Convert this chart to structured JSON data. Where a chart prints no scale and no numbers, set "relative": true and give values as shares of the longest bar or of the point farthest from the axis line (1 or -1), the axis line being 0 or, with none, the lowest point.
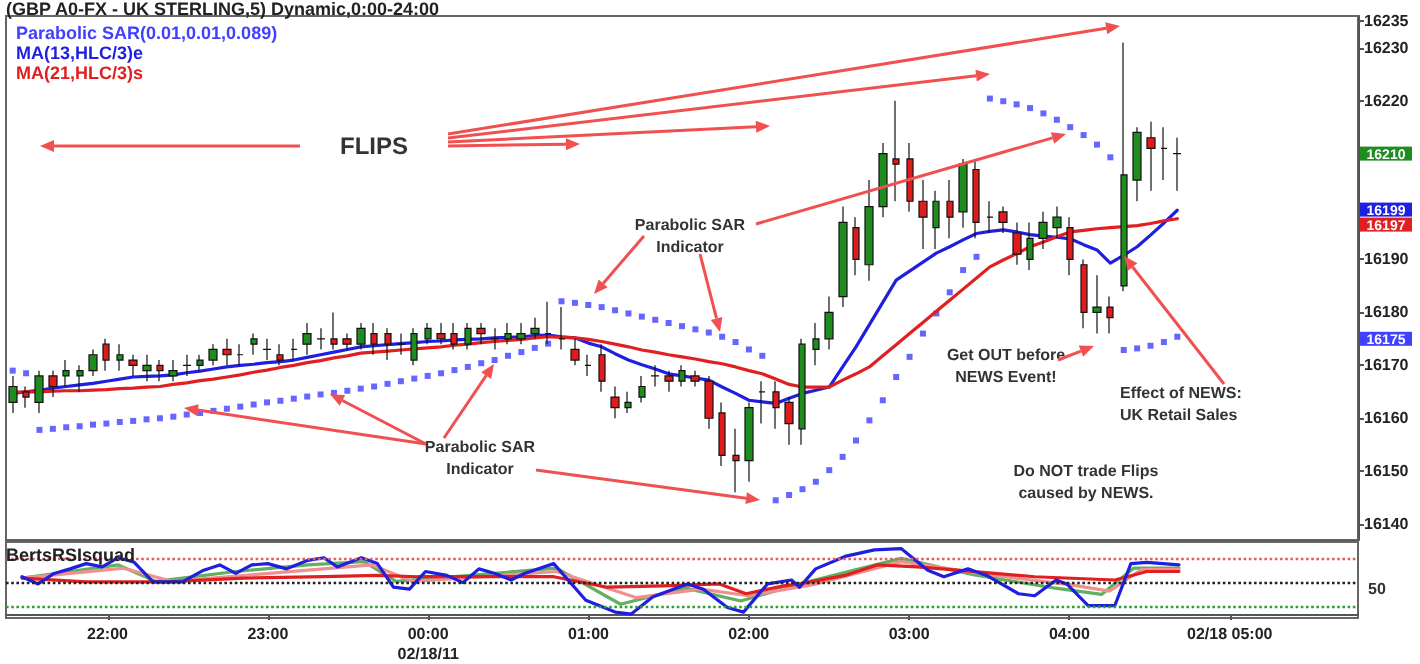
{
  "chart_data": [
    {
      "type": "candlestick",
      "title": "(GBP A0-FX - UK STERLING,5) Dynamic,0:00-24:00",
      "legend": "top left",
      "tick_labels": "y",
      "categories": [
        null,
        null,
        null,
        null,
        null,
        null,
        null,
        null,
        null,
        null,
        null,
        null,
        null,
        null,
        null,
        null,
        null,
        null,
        null,
        null,
        null,
        null,
        null,
        null,
        null,
        null,
        null,
        null,
        null,
        null,
        null,
        null,
        null,
        null,
        null,
        null,
        null,
        null,
        null,
        null,
        null,
        null,
        null,
        null,
        null,
        null,
        null,
        null,
        null,
        null,
        null,
        null,
        null,
        null,
        null,
        null,
        null,
        null,
        null,
        null,
        null,
        null,
        null,
        null,
        null,
        null,
        null,
        null,
        null,
        null,
        null,
        null,
        null,
        null,
        null,
        null,
        null,
        null,
        null,
        null,
        null,
        null,
        null,
        null,
        null,
        null,
        null,
        null,
        null,
        null,
        null,
        null,
        null,
        null,
        null,
        null,
        null,
        null,
        null,
        null,
        null
      ],
      "ohlc": [
        [
          16163,
          16168,
          16161,
          16166
        ],
        [
          16165,
          16166,
          16162,
          16164
        ],
        [
          16163,
          16169,
          16161,
          16168
        ],
        [
          16168,
          16169,
          16164,
          16166
        ],
        [
          16168,
          16171,
          16166,
          16169
        ],
        [
          16168,
          16170,
          16165,
          16169
        ],
        [
          16169,
          16173,
          16168,
          16172
        ],
        [
          16174,
          16175,
          16169,
          16171
        ],
        [
          16171,
          16174,
          16169,
          16172
        ],
        [
          16171,
          16172,
          16168,
          16170
        ],
        [
          16169,
          16172,
          16167,
          16170
        ],
        [
          16170,
          16171,
          16167,
          16169
        ],
        [
          16168,
          16171,
          16167,
          16169
        ],
        [
          16170,
          16172,
          16168,
          16170
        ],
        [
          16170,
          16172,
          16169,
          16171
        ],
        [
          16171,
          16174,
          16170,
          16173
        ],
        [
          16173,
          16175,
          16170,
          16172
        ],
        [
          16172,
          16174,
          16170,
          16172
        ],
        [
          16174,
          16176,
          16172,
          16175
        ],
        [
          16173,
          16175,
          16171,
          16173
        ],
        [
          16172,
          16174,
          16170,
          16171
        ],
        [
          16173,
          16175,
          16171,
          16173
        ],
        [
          16174,
          16178,
          16172,
          16176
        ],
        [
          16175,
          16177,
          16173,
          16175
        ],
        [
          16175,
          16180,
          16173,
          16174
        ],
        [
          16175,
          16176,
          16173,
          16174
        ],
        [
          16174,
          16178,
          16173,
          16177
        ],
        [
          16176,
          16178,
          16172,
          16174
        ],
        [
          16176,
          16177,
          16171,
          16174
        ],
        [
          16174,
          16176,
          16172,
          16174
        ],
        [
          16171,
          16177,
          16170,
          16176
        ],
        [
          16175,
          16178,
          16174,
          16177
        ],
        [
          16176,
          16178,
          16174,
          16175
        ],
        [
          16176,
          16178,
          16173,
          16174
        ],
        [
          16174,
          16178,
          16173,
          16177
        ],
        [
          16177,
          16178,
          16174,
          16176
        ],
        [
          16175,
          16177,
          16173,
          16175
        ],
        [
          16175,
          16178,
          16174,
          16176
        ],
        [
          16175,
          16178,
          16174,
          16176
        ],
        [
          16176,
          16179,
          16175,
          16177
        ],
        [
          16176,
          16182,
          16174,
          16176
        ],
        [
          16175,
          16181,
          16173,
          16175
        ],
        [
          16173,
          16175,
          16170,
          16171
        ],
        [
          16170,
          16172,
          16168,
          16170
        ],
        [
          16172,
          16174,
          16165,
          16167
        ],
        [
          16164,
          16166,
          16160,
          16162
        ],
        [
          16162,
          16165,
          16161,
          16163
        ],
        [
          16164,
          16168,
          16163,
          16166
        ],
        [
          16168,
          16170,
          16166,
          16168
        ],
        [
          16168,
          16169,
          16165,
          16167
        ],
        [
          16167,
          16170,
          16166,
          16169
        ],
        [
          16168,
          16169,
          16166,
          16167
        ],
        [
          16167,
          16168,
          16158,
          16160
        ],
        [
          16161,
          16163,
          16151,
          16153
        ],
        [
          16153,
          16158,
          16146,
          16152
        ],
        [
          16152,
          16163,
          16148,
          16162
        ],
        [
          16165,
          16167,
          16159,
          16165
        ],
        [
          16165,
          16167,
          16158,
          16162
        ],
        [
          16163,
          16164,
          16155,
          16159
        ],
        [
          16158,
          16175,
          16155,
          16174
        ],
        [
          16173,
          16178,
          16170,
          16175
        ],
        [
          16175,
          16183,
          16173,
          16180
        ],
        [
          16183,
          16200,
          16181,
          16197
        ],
        [
          16196,
          16198,
          16187,
          16190
        ],
        [
          16189,
          16205,
          16186,
          16200
        ],
        [
          16200,
          16212,
          16198,
          16210
        ],
        [
          16209,
          16220,
          16201,
          16208
        ],
        [
          16209,
          16212,
          16199,
          16201
        ],
        [
          16201,
          16205,
          16192,
          16198
        ],
        [
          16196,
          16203,
          16192,
          16201
        ],
        [
          16201,
          16205,
          16194,
          16198
        ],
        [
          16199,
          16209,
          16196,
          16208
        ],
        [
          16207,
          16209,
          16194,
          16197
        ],
        [
          16198,
          16201,
          16195,
          16198
        ],
        [
          16199,
          16200,
          16195,
          16197
        ],
        [
          16195,
          16197,
          16189,
          16191
        ],
        [
          16190,
          16197,
          16188,
          16194
        ],
        [
          16194,
          16199,
          16192,
          16197
        ],
        [
          16196,
          16200,
          16194,
          16198
        ],
        [
          16196,
          16198,
          16187,
          16190
        ],
        [
          16189,
          16190,
          16177,
          16180
        ],
        [
          16180,
          16187,
          16176,
          16181
        ],
        [
          16181,
          16183,
          16176,
          16179
        ],
        [
          16185,
          16231,
          16184,
          16206
        ],
        [
          16205,
          16215,
          16201,
          16214
        ],
        [
          16213,
          16216,
          16203,
          16211
        ],
        [
          16211,
          16215,
          16205,
          16211
        ],
        [
          16210,
          16213,
          16203,
          16210
        ],
        null,
        null,
        null,
        null,
        null,
        null,
        null,
        null,
        null,
        null,
        null,
        null,
        null
      ],
      "series": [
        {
          "name": "Parabolic SAR(0.01,0.01,0.089)",
          "type": "scatter",
          "marker": "square",
          "color": "#4040ff",
          "values": [
            16169.0,
            16168.5,
            16157.8,
            16158.0,
            16158.3,
            16158.5,
            16158.8,
            16159.0,
            16159.3,
            16159.5,
            16159.8,
            16160.0,
            16160.3,
            16160.7,
            16161.0,
            16161.4,
            16161.8,
            16162.2,
            16162.6,
            16163.0,
            16163.3,
            16163.7,
            16164.1,
            16164.5,
            16164.8,
            16165.2,
            16165.6,
            16166.0,
            16166.5,
            16167.0,
            16167.5,
            16168.0,
            16168.5,
            16169.1,
            16169.7,
            16170.4,
            16171.0,
            16171.8,
            16172.5,
            16173.3,
            16174.1,
            16182.1,
            16181.8,
            16181.4,
            16181.0,
            16180.4,
            16179.8,
            16179.2,
            16178.6,
            16178.0,
            16177.4,
            16176.8,
            16176.2,
            16175.4,
            16174.4,
            16173.0,
            16171.8,
            16144.5,
            16145.5,
            16146.6,
            16148.0,
            16150.2,
            16152.7,
            16155.8,
            16159.6,
            16163.4,
            16167.8,
            16171.6,
            16176.0,
            16179.8,
            16183.8,
            16188.0,
            16190.5,
            16220.4,
            16219.9,
            16219.3,
            16218.6,
            16217.6,
            16216.4,
            16215.0,
            16213.5,
            16211.7,
            16209.3,
            16172.9,
            16173.2,
            16173.7,
            16174.4,
            16175.4,
            null,
            null,
            null,
            null,
            null,
            null,
            null,
            null,
            null,
            null,
            null,
            null,
            null
          ]
        },
        {
          "name": "MA(13,HLC/3)e",
          "type": "line",
          "color": "#1f1fe0",
          "values": [
            16164.7,
            16165.0,
            16165.3,
            16165.7,
            16166.0,
            16166.3,
            16166.6,
            16167.0,
            16167.4,
            16167.8,
            16167.9,
            16168.0,
            16168.2,
            16168.6,
            16168.9,
            16169.3,
            16169.7,
            16170.0,
            16170.2,
            16170.5,
            16170.7,
            16171.0,
            16171.5,
            16172.0,
            16172.5,
            16173.0,
            16173.5,
            16173.7,
            16173.9,
            16174.1,
            16174.3,
            16174.5,
            16174.6,
            16174.8,
            16174.9,
            16175.0,
            16175.2,
            16175.3,
            16175.4,
            16175.6,
            16175.7,
            16175.4,
            16175.2,
            16174.2,
            16173.5,
            16172.2,
            16171.0,
            16170.1,
            16169.3,
            16168.4,
            16168.0,
            16167.6,
            16167.2,
            16165.9,
            16164.7,
            16163.4,
            16163.1,
            16162.8,
            16163.8,
            16164.7,
            16165.3,
            16165.9,
            16169.7,
            16173.5,
            16177.7,
            16181.9,
            16186.1,
            16187.8,
            16189.5,
            16191.2,
            16192.4,
            16193.7,
            16194.9,
            16195.3,
            16195.6,
            16195.2,
            16194.7,
            16194.4,
            16194.2,
            16193.9,
            16192.8,
            16191.8,
            16189.3,
            16190.8,
            16192.4,
            16194.6,
            16196.9,
            16199.3,
            null,
            null,
            null,
            null,
            null,
            null,
            null,
            null,
            null,
            null,
            null,
            null,
            null
          ]
        },
        {
          "name": "MA(21,HLC/3)s",
          "type": "line",
          "color": "#e02020",
          "values": [
            16164.9,
            16165.0,
            16165.0,
            16165.1,
            16165.2,
            16165.2,
            16165.3,
            16165.4,
            16165.6,
            16165.7,
            16165.9,
            16166.0,
            16166.4,
            16166.7,
            16167.1,
            16167.4,
            16167.8,
            16168.2,
            16168.7,
            16169.1,
            16169.6,
            16170.0,
            16170.5,
            16170.9,
            16171.4,
            16171.8,
            16172.3,
            16172.5,
            16172.7,
            16172.9,
            16173.1,
            16173.3,
            16173.5,
            16173.8,
            16174.0,
            16174.3,
            16174.5,
            16174.7,
            16174.9,
            16175.2,
            16175.4,
            16175.3,
            16175.2,
            16174.9,
            16174.5,
            16174.0,
            16173.5,
            16172.9,
            16172.5,
            16172.0,
            16171.6,
            16171.2,
            16170.7,
            16170.3,
            16169.7,
            16169.0,
            16168.4,
            16167.4,
            16166.4,
            16165.9,
            16165.9,
            16165.9,
            16167.2,
            16168.4,
            16169.7,
            16171.8,
            16173.9,
            16176.0,
            16178.1,
            16180.2,
            16182.3,
            16184.4,
            16186.5,
            16188.6,
            16189.9,
            16191.1,
            16192.4,
            16193.3,
            16194.3,
            16195.2,
            16195.5,
            16195.8,
            16196.0,
            16196.2,
            16196.4,
            16196.8,
            16197.3,
            16197.7,
            null,
            null,
            null,
            null,
            null,
            null,
            null,
            null,
            null,
            null,
            null,
            null,
            null
          ]
        }
      ],
      "ylim": [
        16137,
        16236
      ],
      "yticks": [
        16140,
        16150,
        16160,
        16170,
        16180,
        16190,
        16220,
        16230,
        16235
      ],
      "annotations": [
        "FLIPS",
        "Parabolic SAR\nIndicator",
        "Parabolic SAR\nIndicator",
        "Get OUT before\nNEWS Event!",
        "Effect of NEWS:\nUK Retail Sales",
        "Do NOT trade Flips\ncaused by NEWS.",
        "16210",
        "16199",
        "16197",
        "16175"
      ]
    },
    {
      "type": "line",
      "title": "BertsRSIsquad",
      "relative": true,
      "tick_labels": "x",
      "xlim": [
        "--02-17T21:22",
        "--02-18T05:48"
      ],
      "xticks": [
        {
          "value": "--02-17T22:00",
          "label": "22:00"
        },
        {
          "value": "--02-17T23:00",
          "label": "23:00"
        },
        {
          "value": "--02-18T00:00",
          "label": "00:00\n02/18/11"
        },
        {
          "value": "--02-18T01:00",
          "label": "01:00"
        },
        {
          "value": "--02-18T02:00",
          "label": "02:00"
        },
        {
          "value": "--02-18T03:00",
          "label": "03:00"
        },
        {
          "value": "--02-18T04:00",
          "label": "04:00"
        },
        {
          "value": "--02-18T05:00",
          "label": "02/18 05:00"
        }
      ],
      "annotations": [
        "50"
      ],
      "ref_lines": [
        {
          "axis": "y",
          "value": 0.86,
          "color": "#e06060",
          "line_style": "dotted"
        },
        {
          "axis": "y",
          "value": 0.49,
          "color": "#222222",
          "line_style": "dotted"
        },
        {
          "axis": "y",
          "value": 0.13,
          "color": "#30a030",
          "line_style": "dotted"
        }
      ],
      "series": [
        {
          "color": "#60b060",
          "x": [
            "--02-17T21:28",
            "--02-17T22:04",
            "--02-17T22:18",
            "--02-17T22:48",
            "--02-17T23:15",
            "--02-17T23:36",
            "--02-17T23:48",
            "--02-18T00:18",
            "--02-18T00:48",
            "--02-18T01:12",
            "--02-18T01:36",
            "--02-18T01:57",
            "--02-18T02:18",
            "--02-18T02:57",
            "--02-18T03:24",
            "--02-18T03:54",
            "--02-18T04:12",
            "--02-18T04:24",
            "--02-18T04:41"
          ],
          "values": [
            0.55,
            0.75,
            0.5,
            0.65,
            0.75,
            0.8,
            0.5,
            0.6,
            0.7,
            0.15,
            0.4,
            0.2,
            0.45,
            0.85,
            0.6,
            0.4,
            0.3,
            0.7,
            0.7
          ]
        },
        {
          "color": "#f09090",
          "x": [
            "--02-17T21:28",
            "--02-17T22:06",
            "--02-17T22:24",
            "--02-17T22:54",
            "--02-17T23:24",
            "--02-17T23:39",
            "--02-17T23:54",
            "--02-18T00:24",
            "--02-18T00:48",
            "--02-18T01:18",
            "--02-18T01:42",
            "--02-18T02:00",
            "--02-18T02:24",
            "--02-18T02:57",
            "--02-18T03:30",
            "--02-18T04:00",
            "--02-18T04:15",
            "--02-18T04:27",
            "--02-18T04:41"
          ],
          "values": [
            0.55,
            0.7,
            0.5,
            0.6,
            0.7,
            0.75,
            0.5,
            0.58,
            0.65,
            0.25,
            0.38,
            0.28,
            0.45,
            0.8,
            0.6,
            0.45,
            0.35,
            0.68,
            0.68
          ]
        },
        {
          "color": "#e02020",
          "x": [
            "--02-17T21:28",
            "--02-17T21:52",
            "--02-17T22:22",
            "--02-17T22:51",
            "--02-17T23:21",
            "--02-17T23:41",
            "--02-17T23:56",
            "--02-18T00:20",
            "--02-18T00:47",
            "--02-18T01:07",
            "--02-18T01:28",
            "--02-18T01:49",
            "--02-18T01:59",
            "--02-18T02:13",
            "--02-18T02:19",
            "--02-18T02:36",
            "--02-18T02:48",
            "--02-18T03:03",
            "--02-18T03:18",
            "--02-18T03:47",
            "--02-18T04:17",
            "--02-18T04:29",
            "--02-18T04:41"
          ],
          "values": [
            0.55,
            0.49,
            0.49,
            0.55,
            0.57,
            0.59,
            0.57,
            0.57,
            0.57,
            0.41,
            0.43,
            0.46,
            0.31,
            0.43,
            0.46,
            0.59,
            0.75,
            0.72,
            0.67,
            0.57,
            0.52,
            0.65,
            0.65
          ]
        },
        {
          "color": "#1f1fe0",
          "x": [
            "--02-17T21:28",
            "--02-17T21:34",
            "--02-17T21:40",
            "--02-17T21:46",
            "--02-17T21:52",
            "--02-17T21:58",
            "--02-17T22:04",
            "--02-17T22:10",
            "--02-17T22:17",
            "--02-17T22:28",
            "--02-17T22:36",
            "--02-17T22:42",
            "--02-17T22:48",
            "--02-17T22:54",
            "--02-17T23:00",
            "--02-17T23:07",
            "--02-17T23:15",
            "--02-17T23:21",
            "--02-17T23:26",
            "--02-17T23:35",
            "--02-17T23:41",
            "--02-17T23:47",
            "--02-17T23:53",
            "--02-17T23:59",
            "--02-18T00:07",
            "--02-18T00:13",
            "--02-18T00:19",
            "--02-18T00:25",
            "--02-18T00:31",
            "--02-18T00:36",
            "--02-18T00:47",
            "--02-18T00:59",
            "--02-18T01:10",
            "--02-18T01:16",
            "--02-18T01:24",
            "--02-18T01:37",
            "--02-18T01:43",
            "--02-18T01:52",
            "--02-18T01:58",
            "--02-18T02:07",
            "--02-18T02:16",
            "--02-18T02:19",
            "--02-18T02:25",
            "--02-18T02:36",
            "--02-18T02:47",
            "--02-18T02:57",
            "--02-18T03:07",
            "--02-18T03:13",
            "--02-18T03:22",
            "--02-18T03:29",
            "--02-18T03:41",
            "--02-18T03:47",
            "--02-18T03:55",
            "--02-18T03:59",
            "--02-18T04:07",
            "--02-18T04:17",
            "--02-18T04:23",
            "--02-18T04:29",
            "--02-18T04:41"
          ],
          "values": [
            0.57,
            0.46,
            0.62,
            0.69,
            0.77,
            0.72,
            0.86,
            0.79,
            0.49,
            0.49,
            0.67,
            0.75,
            0.62,
            0.75,
            0.77,
            0.69,
            0.82,
            0.86,
            0.72,
            0.86,
            0.77,
            0.41,
            0.38,
            0.65,
            0.59,
            0.48,
            0.69,
            0.62,
            0.52,
            0.62,
            0.77,
            0.21,
            0.03,
            0,
            0.26,
            0.46,
            0.38,
            0.1,
            0.03,
            0.46,
            0.52,
            0.41,
            0.69,
            0.88,
            0.98,
            1,
            0.67,
            0.57,
            0.69,
            0.59,
            0.31,
            0.28,
            0.52,
            0.46,
            0.13,
            0.13,
            0.77,
            0.79,
            0.75
          ]
        }
      ]
    }
  ]
}
